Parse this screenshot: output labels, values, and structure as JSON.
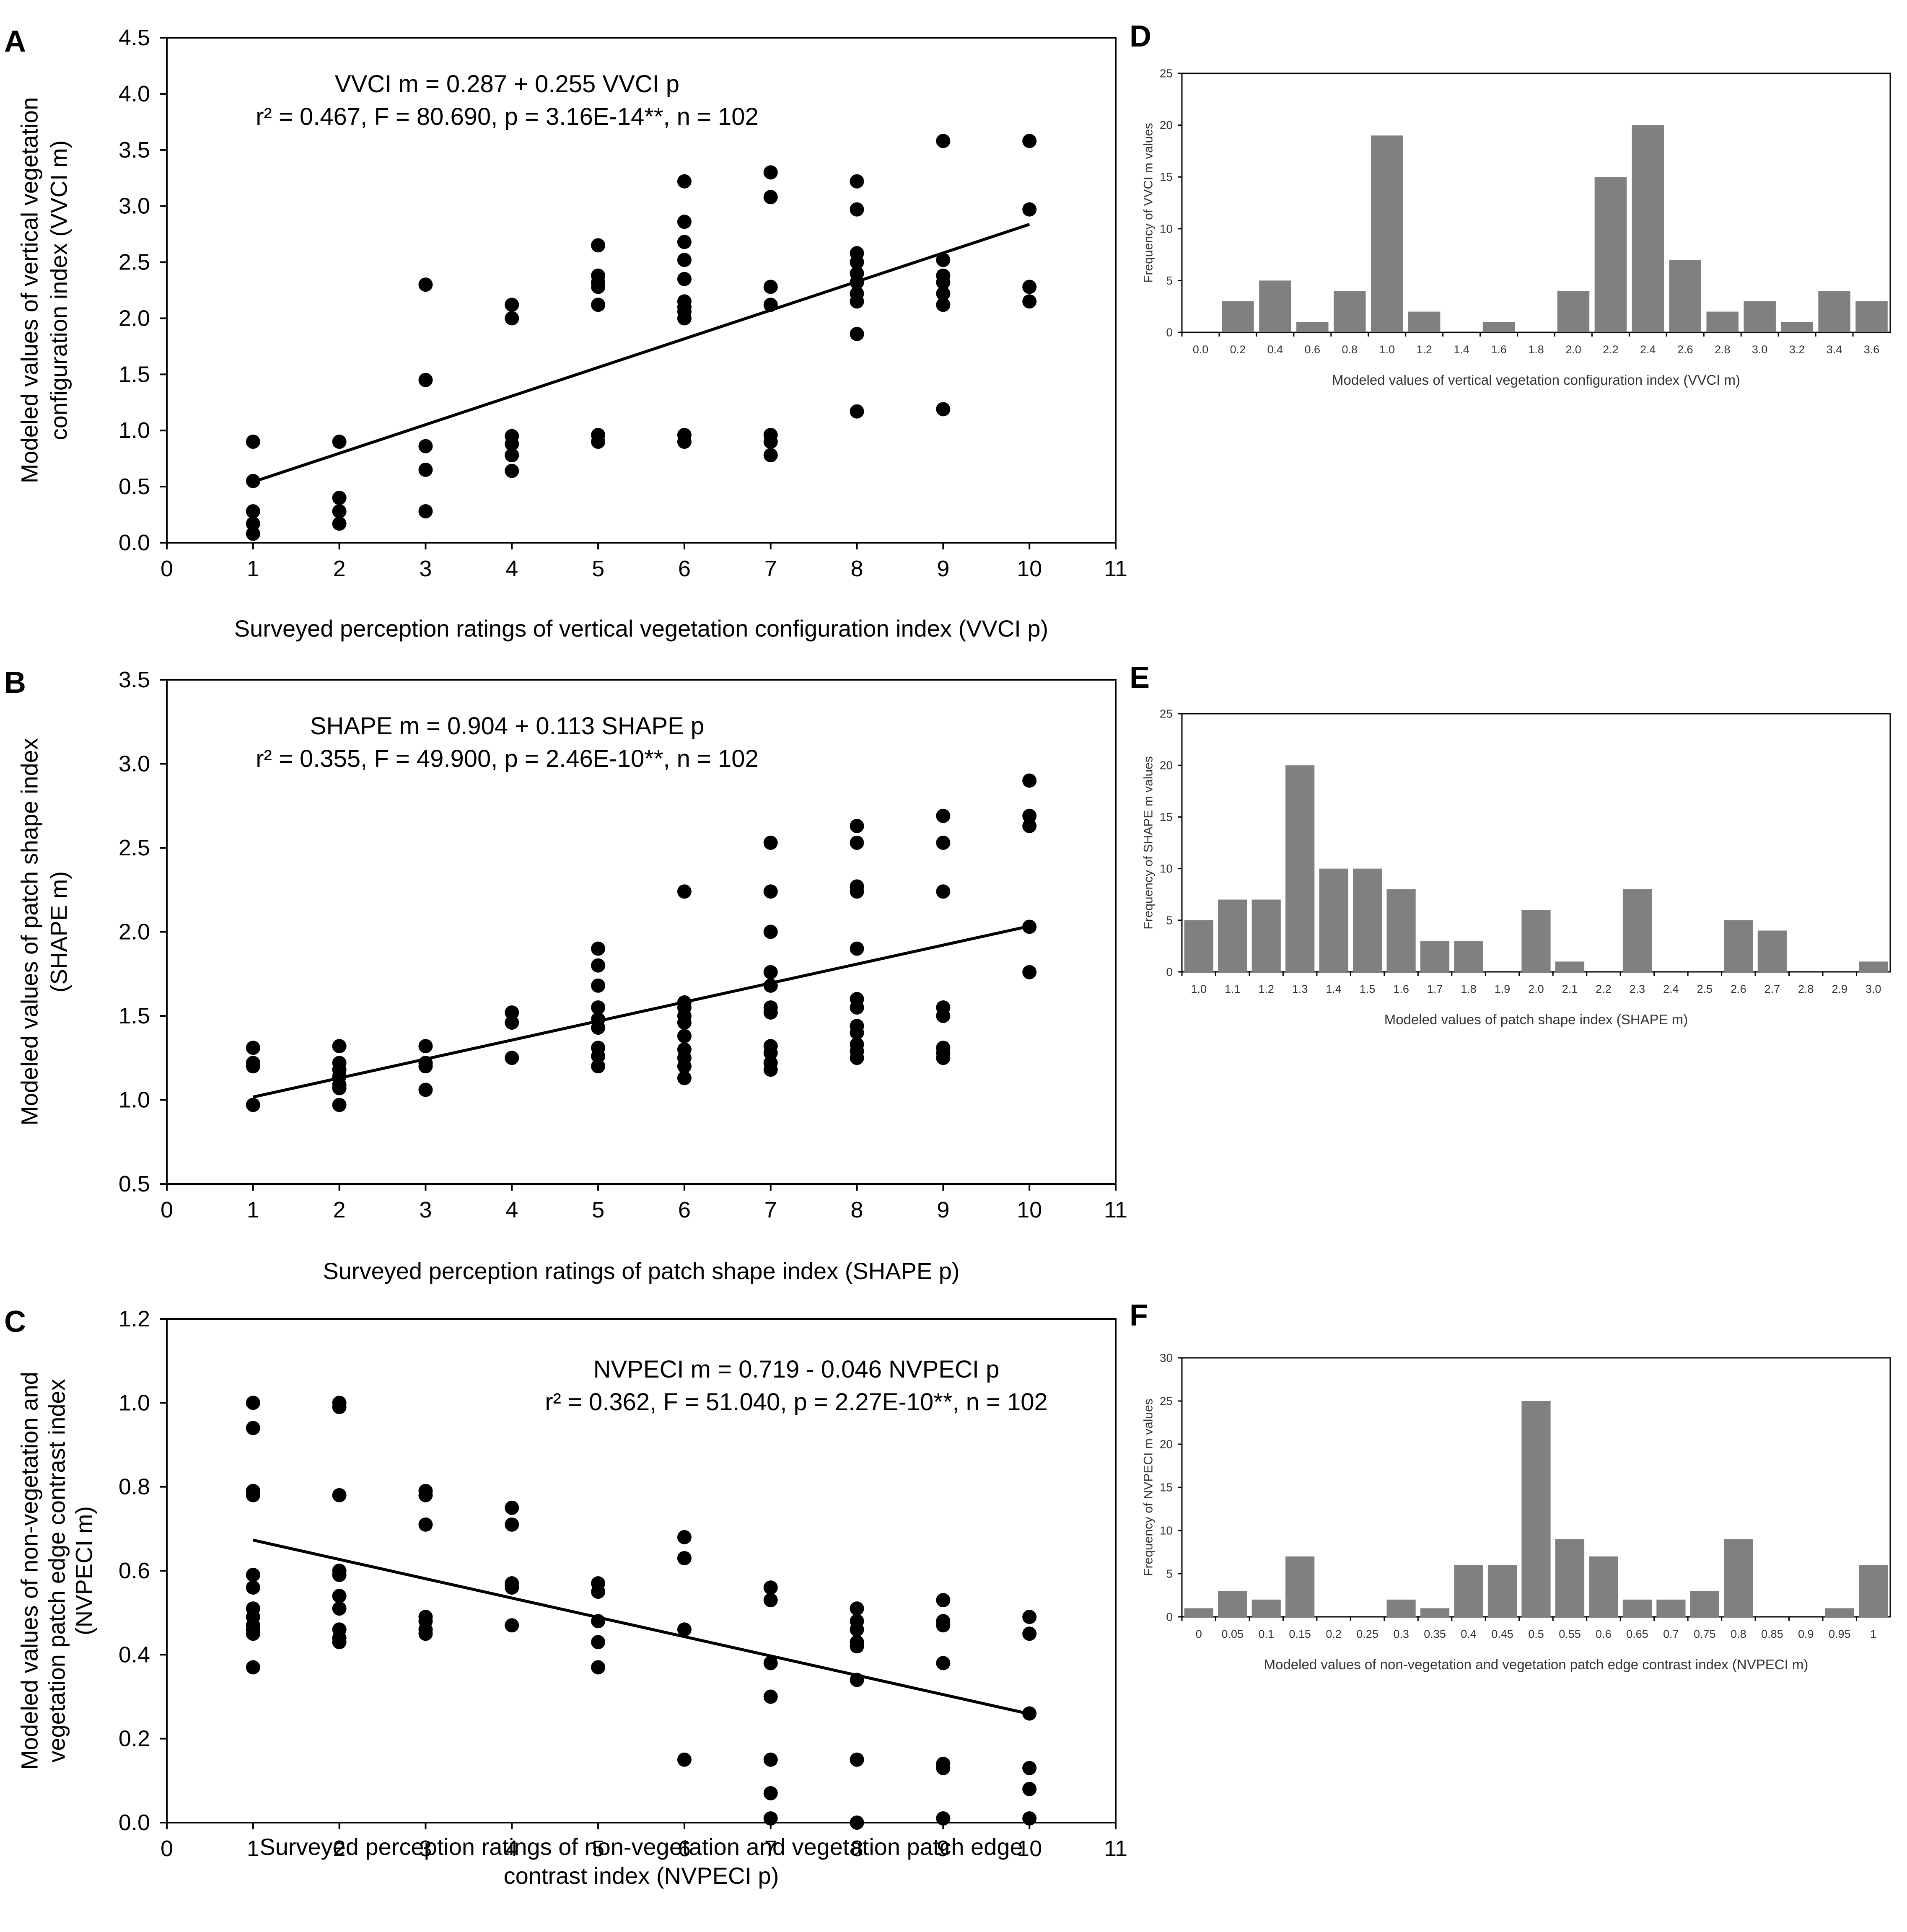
{
  "chart_data": [
    {
      "id": "A",
      "panel_label": "A",
      "type": "scatter",
      "xlabel": "Surveyed perception ratings of vertical vegetation configuration index (VVCI p)",
      "ylabel_lines": [
        "Modeled values of vertical vegetation",
        "configuration index (VVCI m)"
      ],
      "xlim": [
        0,
        11
      ],
      "ylim": [
        0,
        4.5
      ],
      "xticks": [
        0,
        1,
        2,
        3,
        4,
        5,
        6,
        7,
        8,
        9,
        10,
        11
      ],
      "yticks": [
        0,
        0.5,
        1,
        1.5,
        2,
        2.5,
        3,
        3.5,
        4,
        4.5
      ],
      "ytick_labels": [
        "0.0",
        "0.5",
        "1.0",
        "1.5",
        "2.0",
        "2.5",
        "3.0",
        "3.5",
        "4.0",
        "4.5"
      ],
      "equation": "VVCI m = 0.287 + 0.255 VVCI p",
      "stats": "r² = 0.467, F = 80.690, p = 3.16E-14**, n = 102",
      "trend": {
        "intercept": 0.287,
        "slope": 0.255,
        "x_range": [
          1,
          10
        ]
      },
      "points": [
        [
          1,
          0.9
        ],
        [
          1,
          0.55
        ],
        [
          1,
          0.28
        ],
        [
          1,
          0.17
        ],
        [
          1,
          0.08
        ],
        [
          2,
          0.9
        ],
        [
          2,
          0.4
        ],
        [
          2,
          0.28
        ],
        [
          2,
          0.17
        ],
        [
          3,
          2.3
        ],
        [
          3,
          1.45
        ],
        [
          3,
          0.86
        ],
        [
          3,
          0.65
        ],
        [
          3,
          0.28
        ],
        [
          4,
          2.12
        ],
        [
          4,
          2.0
        ],
        [
          4,
          0.95
        ],
        [
          4,
          0.88
        ],
        [
          4,
          0.78
        ],
        [
          4,
          0.64
        ],
        [
          5,
          2.65
        ],
        [
          5,
          2.38
        ],
        [
          5,
          2.32
        ],
        [
          5,
          2.28
        ],
        [
          5,
          2.12
        ],
        [
          5,
          0.96
        ],
        [
          5,
          0.9
        ],
        [
          6,
          3.22
        ],
        [
          6,
          2.86
        ],
        [
          6,
          2.68
        ],
        [
          6,
          2.52
        ],
        [
          6,
          2.35
        ],
        [
          6,
          2.15
        ],
        [
          6,
          2.1
        ],
        [
          6,
          2.06
        ],
        [
          6,
          2.0
        ],
        [
          6,
          0.96
        ],
        [
          6,
          0.9
        ],
        [
          7,
          3.3
        ],
        [
          7,
          3.08
        ],
        [
          7,
          2.28
        ],
        [
          7,
          2.12
        ],
        [
          7,
          0.96
        ],
        [
          7,
          0.9
        ],
        [
          7,
          0.78
        ],
        [
          8,
          3.22
        ],
        [
          8,
          2.97
        ],
        [
          8,
          2.58
        ],
        [
          8,
          2.5
        ],
        [
          8,
          2.4
        ],
        [
          8,
          2.32
        ],
        [
          8,
          2.22
        ],
        [
          8,
          2.15
        ],
        [
          8,
          1.86
        ],
        [
          8,
          1.17
        ],
        [
          9,
          3.58
        ],
        [
          9,
          2.52
        ],
        [
          9,
          2.38
        ],
        [
          9,
          2.32
        ],
        [
          9,
          2.22
        ],
        [
          9,
          2.12
        ],
        [
          9,
          1.19
        ],
        [
          10,
          3.58
        ],
        [
          10,
          2.97
        ],
        [
          10,
          2.28
        ],
        [
          10,
          2.15
        ]
      ]
    },
    {
      "id": "B",
      "panel_label": "B",
      "type": "scatter",
      "xlabel": "Surveyed perception ratings of patch shape index (SHAPE p)",
      "ylabel_lines": [
        "Modeled values of patch shape index",
        "(SHAPE m)"
      ],
      "xlim": [
        0,
        11
      ],
      "ylim": [
        0.5,
        3.5
      ],
      "xticks": [
        0,
        1,
        2,
        3,
        4,
        5,
        6,
        7,
        8,
        9,
        10,
        11
      ],
      "yticks": [
        0.5,
        1,
        1.5,
        2,
        2.5,
        3,
        3.5
      ],
      "ytick_labels": [
        "0.5",
        "1.0",
        "1.5",
        "2.0",
        "2.5",
        "3.0",
        "3.5"
      ],
      "equation": "SHAPE m = 0.904 + 0.113 SHAPE p",
      "stats": "r² = 0.355, F = 49.900, p = 2.46E-10**, n = 102",
      "trend": {
        "intercept": 0.904,
        "slope": 0.113,
        "x_range": [
          1,
          10
        ]
      },
      "points": [
        [
          1,
          1.31
        ],
        [
          1,
          1.22
        ],
        [
          1,
          1.2
        ],
        [
          1,
          0.97
        ],
        [
          2,
          1.32
        ],
        [
          2,
          1.22
        ],
        [
          2,
          1.18
        ],
        [
          2,
          1.14
        ],
        [
          2,
          1.09
        ],
        [
          2,
          1.07
        ],
        [
          2,
          0.97
        ],
        [
          3,
          1.32
        ],
        [
          3,
          1.22
        ],
        [
          3,
          1.2
        ],
        [
          3,
          1.06
        ],
        [
          4,
          1.52
        ],
        [
          4,
          1.46
        ],
        [
          4,
          1.25
        ],
        [
          5,
          1.9
        ],
        [
          5,
          1.8
        ],
        [
          5,
          1.68
        ],
        [
          5,
          1.55
        ],
        [
          5,
          1.48
        ],
        [
          5,
          1.43
        ],
        [
          5,
          1.31
        ],
        [
          5,
          1.26
        ],
        [
          5,
          1.2
        ],
        [
          6,
          2.24
        ],
        [
          6,
          1.58
        ],
        [
          6,
          1.55
        ],
        [
          6,
          1.5
        ],
        [
          6,
          1.46
        ],
        [
          6,
          1.38
        ],
        [
          6,
          1.3
        ],
        [
          6,
          1.25
        ],
        [
          6,
          1.2
        ],
        [
          6,
          1.13
        ],
        [
          7,
          2.53
        ],
        [
          7,
          2.24
        ],
        [
          7,
          2.0
        ],
        [
          7,
          1.76
        ],
        [
          7,
          1.68
        ],
        [
          7,
          1.55
        ],
        [
          7,
          1.52
        ],
        [
          7,
          1.32
        ],
        [
          7,
          1.28
        ],
        [
          7,
          1.22
        ],
        [
          7,
          1.18
        ],
        [
          8,
          2.63
        ],
        [
          8,
          2.53
        ],
        [
          8,
          2.27
        ],
        [
          8,
          2.24
        ],
        [
          8,
          1.9
        ],
        [
          8,
          1.6
        ],
        [
          8,
          1.55
        ],
        [
          8,
          1.44
        ],
        [
          8,
          1.4
        ],
        [
          8,
          1.33
        ],
        [
          8,
          1.29
        ],
        [
          8,
          1.25
        ],
        [
          9,
          2.69
        ],
        [
          9,
          2.53
        ],
        [
          9,
          2.24
        ],
        [
          9,
          1.55
        ],
        [
          9,
          1.5
        ],
        [
          9,
          1.31
        ],
        [
          9,
          1.28
        ],
        [
          9,
          1.25
        ],
        [
          10,
          2.9
        ],
        [
          10,
          2.69
        ],
        [
          10,
          2.63
        ],
        [
          10,
          2.03
        ],
        [
          10,
          1.76
        ]
      ]
    },
    {
      "id": "C",
      "panel_label": "C",
      "type": "scatter",
      "xlabel_lines": [
        "Surveyed perception ratings of non-vegetation and vegetation patch edge",
        "contrast index (NVPECI p)"
      ],
      "ylabel_lines": [
        "Modeled values of non-vegetation and",
        "vegetation patch edge contrast index",
        "(NVPECI m)"
      ],
      "xlim": [
        0,
        11
      ],
      "ylim": [
        0,
        1.2
      ],
      "xticks": [
        0,
        1,
        2,
        3,
        4,
        5,
        6,
        7,
        8,
        9,
        10,
        11
      ],
      "yticks": [
        0,
        0.2,
        0.4,
        0.6,
        0.8,
        1,
        1.2
      ],
      "ytick_labels": [
        "0.0",
        "0.2",
        "0.4",
        "0.6",
        "0.8",
        "1.0",
        "1.2"
      ],
      "equation": "NVPECI m = 0.719 - 0.046 NVPECI p",
      "stats": "r² = 0.362, F = 51.040, p = 2.27E-10**, n = 102",
      "trend": {
        "intercept": 0.719,
        "slope": -0.046,
        "x_range": [
          1,
          10
        ]
      },
      "points": [
        [
          1,
          1.0
        ],
        [
          1,
          0.94
        ],
        [
          1,
          0.79
        ],
        [
          1,
          0.78
        ],
        [
          1,
          0.59
        ],
        [
          1,
          0.56
        ],
        [
          1,
          0.51
        ],
        [
          1,
          0.49
        ],
        [
          1,
          0.47
        ],
        [
          1,
          0.46
        ],
        [
          1,
          0.45
        ],
        [
          1,
          0.37
        ],
        [
          2,
          1.0
        ],
        [
          2,
          0.99
        ],
        [
          2,
          0.78
        ],
        [
          2,
          0.6
        ],
        [
          2,
          0.59
        ],
        [
          2,
          0.54
        ],
        [
          2,
          0.51
        ],
        [
          2,
          0.46
        ],
        [
          2,
          0.44
        ],
        [
          2,
          0.43
        ],
        [
          3,
          0.79
        ],
        [
          3,
          0.78
        ],
        [
          3,
          0.71
        ],
        [
          3,
          0.49
        ],
        [
          3,
          0.48
        ],
        [
          3,
          0.46
        ],
        [
          3,
          0.45
        ],
        [
          4,
          0.75
        ],
        [
          4,
          0.71
        ],
        [
          4,
          0.57
        ],
        [
          4,
          0.56
        ],
        [
          4,
          0.47
        ],
        [
          5,
          0.57
        ],
        [
          5,
          0.55
        ],
        [
          5,
          0.48
        ],
        [
          5,
          0.43
        ],
        [
          5,
          0.37
        ],
        [
          6,
          0.68
        ],
        [
          6,
          0.63
        ],
        [
          6,
          0.46
        ],
        [
          6,
          0.15
        ],
        [
          7,
          0.56
        ],
        [
          7,
          0.53
        ],
        [
          7,
          0.38
        ],
        [
          7,
          0.3
        ],
        [
          7,
          0.15
        ],
        [
          7,
          0.07
        ],
        [
          7,
          0.01
        ],
        [
          8,
          0.51
        ],
        [
          8,
          0.48
        ],
        [
          8,
          0.46
        ],
        [
          8,
          0.43
        ],
        [
          8,
          0.42
        ],
        [
          8,
          0.34
        ],
        [
          8,
          0.15
        ],
        [
          8,
          0.0
        ],
        [
          9,
          0.53
        ],
        [
          9,
          0.48
        ],
        [
          9,
          0.47
        ],
        [
          9,
          0.38
        ],
        [
          9,
          0.14
        ],
        [
          9,
          0.13
        ],
        [
          9,
          0.01
        ],
        [
          10,
          0.49
        ],
        [
          10,
          0.45
        ],
        [
          10,
          0.26
        ],
        [
          10,
          0.13
        ],
        [
          10,
          0.08
        ],
        [
          10,
          0.01
        ]
      ]
    },
    {
      "id": "D",
      "panel_label": "D",
      "type": "bar",
      "xlabel": "Modeled values of vertical vegetation configuration index (VVCI m)",
      "ylabel": "Frequency of VVCI m values",
      "ylim": [
        0,
        25
      ],
      "yticks": [
        0,
        5,
        10,
        15,
        20,
        25
      ],
      "categories": [
        "0.0",
        "0.2",
        "0.4",
        "0.6",
        "0.8",
        "1.0",
        "1.2",
        "1.4",
        "1.6",
        "1.8",
        "2.0",
        "2.2",
        "2.4",
        "2.6",
        "2.8",
        "3.0",
        "3.2",
        "3.4",
        "3.6"
      ],
      "values": [
        0,
        3,
        5,
        1,
        4,
        19,
        2,
        0,
        1,
        0,
        4,
        15,
        20,
        7,
        2,
        3,
        1,
        4,
        3
      ]
    },
    {
      "id": "E",
      "panel_label": "E",
      "type": "bar",
      "xlabel": "Modeled values of patch shape index (SHAPE m)",
      "ylabel": "Frequency of SHAPE m values",
      "ylim": [
        0,
        25
      ],
      "yticks": [
        0,
        5,
        10,
        15,
        20,
        25
      ],
      "categories": [
        "1.0",
        "1.1",
        "1.2",
        "1.3",
        "1.4",
        "1.5",
        "1.6",
        "1.7",
        "1.8",
        "1.9",
        "2.0",
        "2.1",
        "2.2",
        "2.3",
        "2.4",
        "2.5",
        "2.6",
        "2.7",
        "2.8",
        "2.9",
        "3.0"
      ],
      "values": [
        5,
        7,
        7,
        20,
        10,
        10,
        8,
        3,
        3,
        0,
        6,
        1,
        0,
        8,
        0,
        0,
        5,
        4,
        0,
        0,
        1
      ]
    },
    {
      "id": "F",
      "panel_label": "F",
      "type": "bar",
      "xlabel": "Modeled values of non-vegetation and vegetation patch edge contrast index (NVPECI m)",
      "ylabel": "Frequency of NVPECI m values",
      "ylim": [
        0,
        30
      ],
      "yticks": [
        0,
        5,
        10,
        15,
        20,
        25,
        30
      ],
      "categories": [
        "0",
        "0.05",
        "0.1",
        "0.15",
        "0.2",
        "0.25",
        "0.3",
        "0.35",
        "0.4",
        "0.45",
        "0.5",
        "0.55",
        "0.6",
        "0.65",
        "0.7",
        "0.75",
        "0.8",
        "0.85",
        "0.9",
        "0.95",
        "1"
      ],
      "values": [
        1,
        3,
        2,
        7,
        0,
        0,
        2,
        1,
        6,
        6,
        25,
        9,
        7,
        2,
        2,
        3,
        9,
        0,
        0,
        1,
        6
      ]
    }
  ]
}
